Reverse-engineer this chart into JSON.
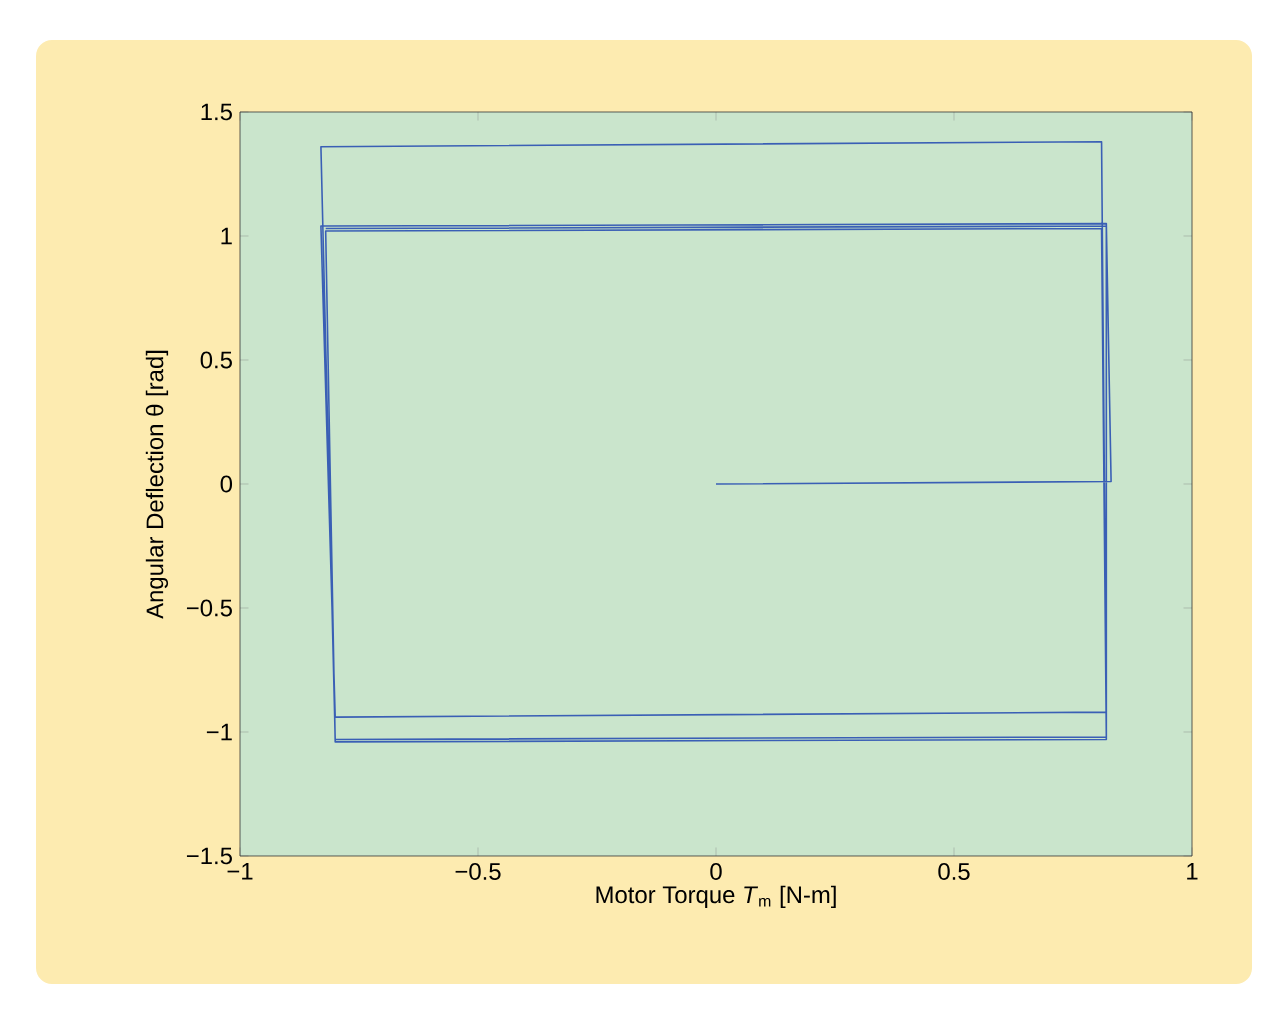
{
  "chart_data": {
    "type": "line",
    "xlabel": "Motor Torque *T*$_{m}$ [N-m]",
    "ylabel": "Angular Deflection θ [rad]",
    "x": [
      0,
      0.83,
      0.82,
      -0.83,
      -0.8,
      0.82,
      0.81,
      -0.83,
      -0.8,
      0.82,
      0.81,
      -0.82,
      -0.8,
      0.82,
      0.82,
      -0.82
    ],
    "series": [
      {
        "color": "#3a5fb5",
        "values": [
          0,
          0.01,
          1.05,
          1.04,
          -0.94,
          -0.92,
          1.38,
          1.36,
          -1.03,
          -1.02,
          1.03,
          1.02,
          -1.04,
          -1.03,
          1.04,
          1.03
        ]
      }
    ],
    "xlim": [
      -1,
      1
    ],
    "ylim": [
      -1.5,
      1.5
    ],
    "xticks": [
      {
        "value": -1,
        "label": "−1"
      },
      {
        "value": -0.5,
        "label": "−0.5"
      },
      0,
      0.5,
      1
    ],
    "yticks": [
      {
        "value": -1.5,
        "label": "−1.5"
      },
      {
        "value": -1,
        "label": "−1"
      },
      {
        "value": -0.5,
        "label": "−0.5"
      },
      0,
      0.5,
      1,
      1.5
    ],
    "grid": false,
    "marker": "none",
    "line_style": "solid"
  }
}
